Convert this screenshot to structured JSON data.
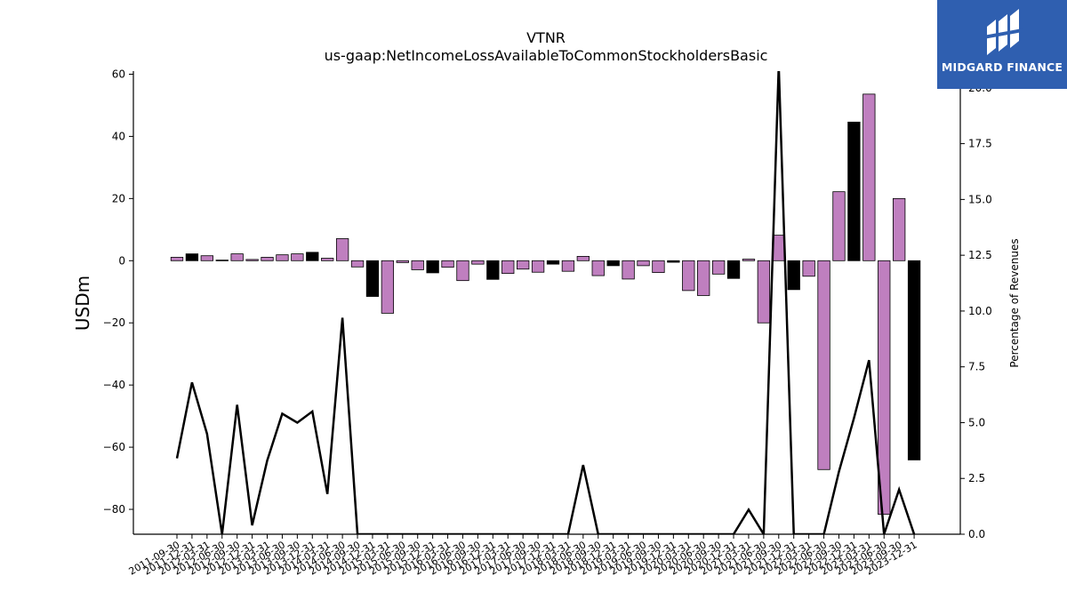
{
  "header": {
    "title": "VTNR",
    "subtitle": "us-gaap:NetIncomeLossAvailableToCommonStockholdersBasic"
  },
  "logo": {
    "text": "MIDGARD FINANCE",
    "background": "#2f5fb0"
  },
  "chart_data": {
    "type": "bar",
    "ylabel": "USDm",
    "y2label": "Percentage of Revenues",
    "ylim": [
      -88,
      61
    ],
    "y2lim": [
      0,
      20.75
    ],
    "yticks": [
      60,
      40,
      20,
      0,
      -20,
      -40,
      -60,
      -80
    ],
    "y2ticks": [
      "0.0",
      "2.5",
      "5.0",
      "7.5",
      "10.0",
      "12.5",
      "15.0",
      "17.5",
      "20.0"
    ],
    "colors": {
      "bar_a": "#bf7fbf",
      "bar_b": "#000000",
      "line": "#000000"
    },
    "categories": [
      "2011-09-30",
      "2011-12-31",
      "2012-03-31",
      "2012-06-30",
      "2012-09-30",
      "2012-12-31",
      "2013-03-31",
      "2013-06-30",
      "2013-09-30",
      "2013-12-31",
      "2014-03-31",
      "2014-06-30",
      "2014-09-30",
      "2014-12-31",
      "2015-03-31",
      "2015-06-30",
      "2015-09-30",
      "2015-12-31",
      "2016-03-31",
      "2016-06-30",
      "2016-09-30",
      "2016-12-31",
      "2017-03-31",
      "2017-06-30",
      "2017-09-30",
      "2017-12-31",
      "2018-03-31",
      "2018-06-30",
      "2018-09-30",
      "2018-12-31",
      "2019-03-31",
      "2019-06-30",
      "2019-09-30",
      "2019-12-31",
      "2020-03-31",
      "2020-06-30",
      "2020-09-30",
      "2020-12-31",
      "2021-03-31",
      "2021-06-30",
      "2021-09-30",
      "2021-12-31",
      "2022-03-31",
      "2022-06-30",
      "2022-09-30",
      "2022-12-31",
      "2023-03-31",
      "2023-06-30",
      "2023-09-30",
      "2023-12-31"
    ],
    "series": [
      {
        "axis": "left",
        "values": [
          1.1,
          2.2,
          1.6,
          0.2,
          2.2,
          0.4,
          1.1,
          1.9,
          2.2,
          2.7,
          0.8,
          7.1,
          -2.0,
          -11.5,
          -16.9,
          -0.6,
          -2.9,
          -3.9,
          -2.1,
          -6.4,
          -1.1,
          -6.0,
          -4.1,
          -2.7,
          -3.7,
          -1.1,
          -3.4,
          1.4,
          -4.8,
          -1.6,
          -5.9,
          -1.6,
          -3.8,
          -0.5,
          -9.6,
          -11.2,
          -4.3,
          -5.7,
          0.5,
          -20.0,
          8.2,
          -9.3,
          -5.0,
          -67.2,
          22.2,
          44.6,
          53.6,
          -81.6,
          20.0,
          -64.1
        ]
      },
      {
        "axis": "right",
        "values": [
          3.4,
          6.8,
          4.5,
          0.0,
          5.8,
          0.4,
          3.3,
          5.4,
          5.0,
          5.5,
          1.8,
          9.7,
          0.0,
          0.0,
          0.0,
          0.0,
          0.0,
          0.0,
          0.0,
          0.0,
          0.0,
          0.0,
          0.0,
          0.0,
          0.0,
          0.0,
          0.0,
          3.1,
          0.0,
          0.0,
          0.0,
          0.0,
          0.0,
          0.0,
          0.0,
          0.0,
          0.0,
          0.0,
          1.1,
          0.0,
          21.0,
          0.0,
          0.0,
          0.0,
          2.8,
          5.2,
          7.8,
          0.0,
          2.0,
          0.0
        ]
      }
    ]
  }
}
